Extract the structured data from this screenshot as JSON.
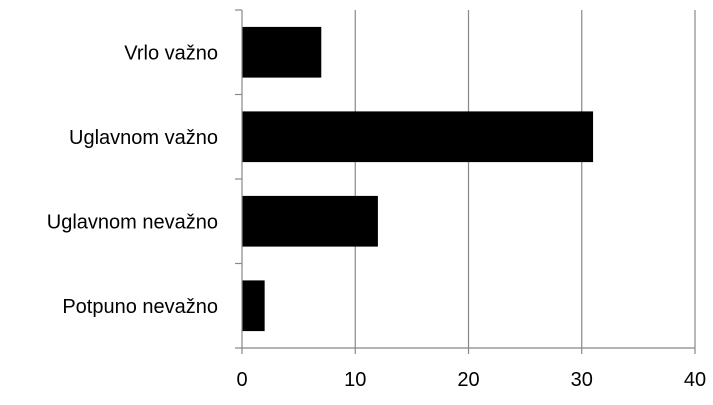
{
  "chart_data": {
    "type": "bar",
    "orientation": "horizontal",
    "title": "",
    "xlabel": "",
    "ylabel": "",
    "categories": [
      "Vrlo važno",
      "Uglavnom važno",
      "Uglavnom nevažno",
      "Potpuno nevažno"
    ],
    "values": [
      7,
      31,
      12,
      2
    ],
    "xlim": [
      0,
      40
    ],
    "xticks": [
      0,
      10,
      20,
      30,
      40
    ],
    "grid": "vertical",
    "legend": "none",
    "bar_color": "#000000",
    "grid_color": "#888888"
  }
}
